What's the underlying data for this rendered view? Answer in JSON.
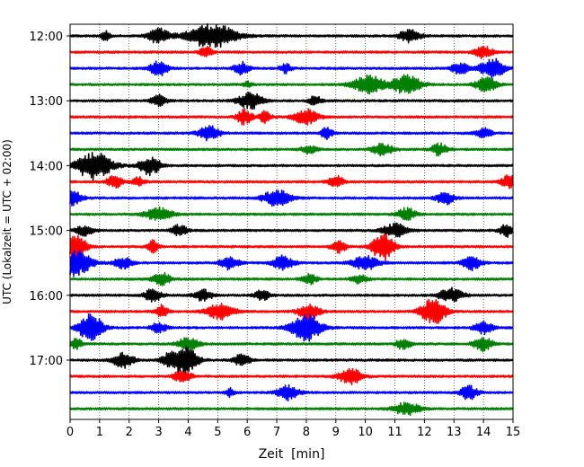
{
  "chart_data": {
    "type": "line",
    "xlabel": "Zeit  [min]",
    "ylabel": "UTC (Lokalzeit = UTC + 02:00)",
    "xlim": [
      0,
      15
    ],
    "x_ticks": [
      0,
      1,
      2,
      3,
      4,
      5,
      6,
      7,
      8,
      9,
      10,
      11,
      12,
      13,
      14,
      15
    ],
    "y_tick_labels": [
      "12:00",
      "13:00",
      "14:00",
      "15:00",
      "16:00",
      "17:00"
    ],
    "trace_minutes": 15,
    "grid": "vertical dotted at each minute",
    "colors": [
      "#000000",
      "#ff0000",
      "#0000ff",
      "#008000"
    ],
    "traces": [
      {
        "start": "12:00",
        "bursts": [
          [
            1.2,
            0.35,
            0.15
          ],
          [
            3.0,
            0.55,
            0.35
          ],
          [
            4.8,
            0.9,
            0.8
          ],
          [
            11.5,
            0.5,
            0.35
          ]
        ]
      },
      {
        "start": "12:15",
        "bursts": [
          [
            4.6,
            0.4,
            0.2
          ],
          [
            14.0,
            0.45,
            0.3
          ]
        ]
      },
      {
        "start": "12:30",
        "bursts": [
          [
            3.0,
            0.55,
            0.3
          ],
          [
            5.8,
            0.45,
            0.25
          ],
          [
            7.3,
            0.35,
            0.2
          ],
          [
            13.2,
            0.4,
            0.3
          ],
          [
            14.3,
            0.75,
            0.4
          ]
        ]
      },
      {
        "start": "12:45",
        "bursts": [
          [
            6.0,
            0.2,
            0.15
          ],
          [
            10.1,
            0.7,
            0.5
          ],
          [
            11.4,
            0.8,
            0.45
          ],
          [
            14.1,
            0.55,
            0.35
          ]
        ]
      },
      {
        "start": "13:00",
        "bursts": [
          [
            3.0,
            0.4,
            0.25
          ],
          [
            6.1,
            0.6,
            0.4
          ],
          [
            8.3,
            0.35,
            0.2
          ]
        ]
      },
      {
        "start": "13:15",
        "bursts": [
          [
            5.9,
            0.55,
            0.25
          ],
          [
            6.6,
            0.4,
            0.2
          ],
          [
            8.0,
            0.55,
            0.4
          ]
        ]
      },
      {
        "start": "13:30",
        "bursts": [
          [
            4.7,
            0.55,
            0.35
          ],
          [
            8.7,
            0.4,
            0.2
          ],
          [
            14.0,
            0.4,
            0.25
          ]
        ]
      },
      {
        "start": "13:45",
        "bursts": [
          [
            8.1,
            0.3,
            0.25
          ],
          [
            10.6,
            0.45,
            0.35
          ],
          [
            12.5,
            0.45,
            0.25
          ]
        ]
      },
      {
        "start": "14:00",
        "bursts": [
          [
            0.8,
            1.0,
            0.6
          ],
          [
            2.7,
            0.7,
            0.35
          ]
        ]
      },
      {
        "start": "14:15",
        "bursts": [
          [
            1.5,
            0.45,
            0.25
          ],
          [
            2.3,
            0.35,
            0.2
          ],
          [
            9.0,
            0.45,
            0.25
          ],
          [
            14.9,
            0.5,
            0.3
          ]
        ]
      },
      {
        "start": "14:30",
        "bursts": [
          [
            0.1,
            0.55,
            0.3
          ],
          [
            7.0,
            0.6,
            0.45
          ],
          [
            12.7,
            0.45,
            0.3
          ]
        ]
      },
      {
        "start": "14:45",
        "bursts": [
          [
            3.0,
            0.45,
            0.45
          ],
          [
            11.4,
            0.45,
            0.3
          ]
        ]
      },
      {
        "start": "15:00",
        "bursts": [
          [
            0.5,
            0.35,
            0.3
          ],
          [
            3.7,
            0.4,
            0.25
          ],
          [
            11.0,
            0.5,
            0.4
          ],
          [
            14.8,
            0.45,
            0.25
          ]
        ]
      },
      {
        "start": "15:15",
        "bursts": [
          [
            0.1,
            1.1,
            0.4
          ],
          [
            2.8,
            0.45,
            0.2
          ],
          [
            9.1,
            0.45,
            0.25
          ],
          [
            10.6,
            1.1,
            0.35
          ]
        ]
      },
      {
        "start": "15:30",
        "bursts": [
          [
            0.2,
            1.0,
            0.5
          ],
          [
            1.8,
            0.4,
            0.3
          ],
          [
            5.4,
            0.5,
            0.3
          ],
          [
            7.2,
            0.5,
            0.35
          ],
          [
            10.0,
            0.5,
            0.45
          ],
          [
            13.6,
            0.5,
            0.3
          ]
        ]
      },
      {
        "start": "15:45",
        "bursts": [
          [
            3.1,
            0.45,
            0.3
          ],
          [
            8.1,
            0.35,
            0.25
          ],
          [
            9.8,
            0.35,
            0.25
          ]
        ]
      },
      {
        "start": "16:00",
        "bursts": [
          [
            2.8,
            0.45,
            0.3
          ],
          [
            4.5,
            0.4,
            0.3
          ],
          [
            6.5,
            0.35,
            0.25
          ],
          [
            12.9,
            0.5,
            0.4
          ]
        ]
      },
      {
        "start": "16:15",
        "bursts": [
          [
            3.1,
            0.45,
            0.2
          ],
          [
            5.1,
            0.6,
            0.45
          ],
          [
            8.1,
            0.6,
            0.35
          ],
          [
            12.3,
            1.0,
            0.4
          ]
        ]
      },
      {
        "start": "16:30",
        "bursts": [
          [
            0.7,
            1.0,
            0.4
          ],
          [
            3.0,
            0.4,
            0.25
          ],
          [
            8.0,
            1.0,
            0.5
          ],
          [
            14.0,
            0.45,
            0.3
          ]
        ]
      },
      {
        "start": "16:45",
        "bursts": [
          [
            0.2,
            0.4,
            0.2
          ],
          [
            4.0,
            0.45,
            0.35
          ],
          [
            11.3,
            0.4,
            0.25
          ],
          [
            14.0,
            0.55,
            0.3
          ]
        ]
      },
      {
        "start": "17:00",
        "bursts": [
          [
            1.8,
            0.55,
            0.35
          ],
          [
            3.4,
            0.45,
            0.3
          ],
          [
            3.9,
            1.0,
            0.4
          ],
          [
            5.8,
            0.4,
            0.3
          ]
        ]
      },
      {
        "start": "17:15",
        "bursts": [
          [
            3.8,
            0.45,
            0.3
          ],
          [
            9.5,
            0.55,
            0.4
          ]
        ]
      },
      {
        "start": "17:30",
        "bursts": [
          [
            5.4,
            0.3,
            0.15
          ],
          [
            7.4,
            0.55,
            0.35
          ],
          [
            13.5,
            0.5,
            0.3
          ]
        ]
      },
      {
        "start": "17:45",
        "bursts": [
          [
            11.4,
            0.45,
            0.45
          ]
        ]
      }
    ]
  }
}
